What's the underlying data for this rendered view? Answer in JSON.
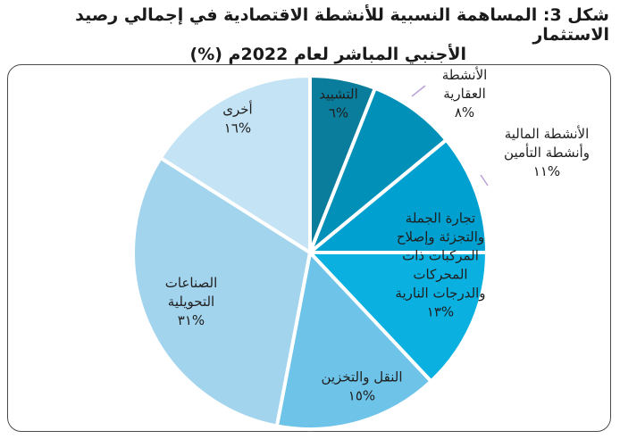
{
  "title": {
    "line1": "شكل 3: المساهمة النسبية للأنشطة الاقتصادية في إجمالي رصيد الاستثمار",
    "line2": "الأجنبي المباشر لعام 2022م (%)"
  },
  "chart_data": {
    "type": "pie",
    "start_angle_deg": 0,
    "direction": "clockwise",
    "slices": [
      {
        "label_lines": [
          "التشييد"
        ],
        "value_text": "%٦",
        "value": 6,
        "color": "#0a7d9c"
      },
      {
        "label_lines": [
          "الأنشطة",
          "العقارية"
        ],
        "value_text": "%٨",
        "value": 8,
        "color": "#0090b8"
      },
      {
        "label_lines": [
          "الأنشطة المالية",
          "وأنشطة التأمين"
        ],
        "value_text": "%١١",
        "value": 11,
        "color": "#00a0d0"
      },
      {
        "label_lines": [
          "تجارة الجملة",
          "والتجزئة وإصلاح",
          "المركبات ذات",
          "المحركات",
          "والدرجات النارية"
        ],
        "value_text": "%١٣",
        "value": 13,
        "color": "#0ab0e0"
      },
      {
        "label_lines": [
          "النقل والتخزين"
        ],
        "value_text": "%١٥",
        "value": 15,
        "color": "#6ec3e8"
      },
      {
        "label_lines": [
          "الصناعات",
          "التحويلية"
        ],
        "value_text": "%٣١",
        "value": 31,
        "color": "#a3d4ee"
      },
      {
        "label_lines": [
          "أخرى"
        ],
        "value_text": "%١٦",
        "value": 16,
        "color": "#c4e3f4"
      }
    ]
  }
}
